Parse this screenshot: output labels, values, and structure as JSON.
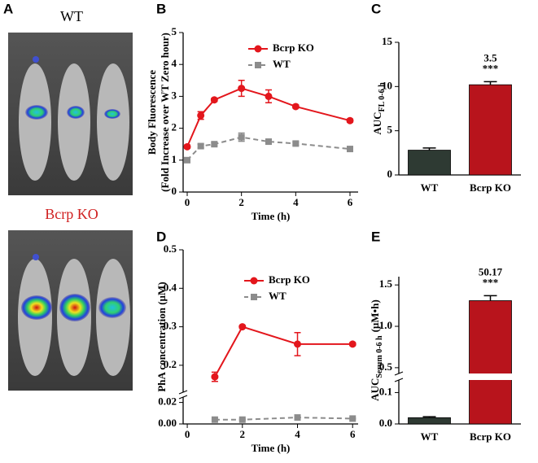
{
  "figure": {
    "panel_labels": [
      "A",
      "B",
      "C",
      "D",
      "E"
    ],
    "image_labels": [
      "WT",
      "Bcrp KO"
    ]
  },
  "chart_data": [
    {
      "type": "line",
      "xlabel": "Time (h)",
      "ylabel": [
        "Body Fluorescence",
        "(Fold Increase over WT Zero hour)"
      ],
      "x": [
        0,
        0.5,
        1,
        2,
        3,
        4,
        6
      ],
      "series": [
        {
          "name": "Bcrp KO",
          "color": "#e3161c",
          "marker": "circle",
          "dash": false,
          "values": [
            1.42,
            2.4,
            2.89,
            3.25,
            3.0,
            2.68,
            2.24
          ],
          "errors": [
            0.05,
            0.12,
            0.05,
            0.25,
            0.2,
            0.05,
            0.05
          ]
        },
        {
          "name": "WT",
          "color": "#8c8c8c",
          "marker": "square",
          "dash": true,
          "values": [
            1.0,
            1.44,
            1.5,
            1.72,
            1.58,
            1.52,
            1.35
          ],
          "errors": [
            0.05,
            0.06,
            0.05,
            0.13,
            0.05,
            0.05,
            0.05
          ]
        }
      ],
      "xlim": [
        -0.15,
        6.3
      ],
      "xticks": [
        0,
        2,
        4,
        6
      ],
      "ylim": [
        0,
        5
      ],
      "yticks": [
        0,
        1,
        2,
        3,
        4,
        5
      ]
    },
    {
      "type": "bar",
      "ylabel": "AUC",
      "ylabel_sub": "FL 0-6 h",
      "categories": [
        "WT",
        "Bcrp KO"
      ],
      "values": [
        2.8,
        10.2
      ],
      "errors": [
        0.25,
        0.35
      ],
      "colors": [
        "#2e3a33",
        "#b8141c"
      ],
      "ylim": [
        0,
        15
      ],
      "yticks": [
        0,
        5,
        10,
        15
      ],
      "annotations": [
        "3.5",
        "***"
      ]
    },
    {
      "type": "line",
      "xlabel": "Time (h)",
      "ylabel": "PhA concentration (µM)",
      "x": [
        1,
        2,
        4,
        6
      ],
      "series": [
        {
          "name": "Bcrp KO",
          "color": "#e3161c",
          "marker": "circle",
          "dash": false,
          "values": [
            0.17,
            0.3,
            0.255,
            0.255
          ],
          "errors": [
            0.012,
            0.003,
            0.03,
            0.004
          ]
        },
        {
          "name": "WT",
          "color": "#8c8c8c",
          "marker": "square",
          "dash": true,
          "values": [
            0.004,
            0.004,
            0.006,
            0.005
          ],
          "errors": [
            0.0005,
            0.0005,
            0.0008,
            0.0005
          ]
        }
      ],
      "xlim": [
        -0.15,
        6.2
      ],
      "xticks": [
        0,
        2,
        4,
        6
      ],
      "ylim": [
        0,
        0.5
      ],
      "ybreak": [
        0.025,
        0.13
      ],
      "yticks": [
        {
          "value": 0,
          "label": "0.00"
        },
        0.02,
        0.2,
        0.3,
        0.4,
        0.5
      ]
    },
    {
      "type": "bar",
      "ylabel": "AUC",
      "ylabel_sub": "Serum 0-6 h",
      "ylabel_unit": "(µM•h)",
      "categories": [
        "WT",
        "Bcrp KO"
      ],
      "values": [
        0.02,
        1.31
      ],
      "errors": [
        0.003,
        0.06
      ],
      "colors": [
        "#2e3a33",
        "#b8141c"
      ],
      "ylim": [
        0,
        1.6
      ],
      "ybreak": [
        0.14,
        0.43
      ],
      "yticks": [
        {
          "value": 0,
          "label": "0.0"
        },
        0.1,
        0.5,
        {
          "value": 1,
          "label": "1.0"
        },
        1.5
      ],
      "annotations": [
        "50.17",
        "***"
      ]
    }
  ]
}
